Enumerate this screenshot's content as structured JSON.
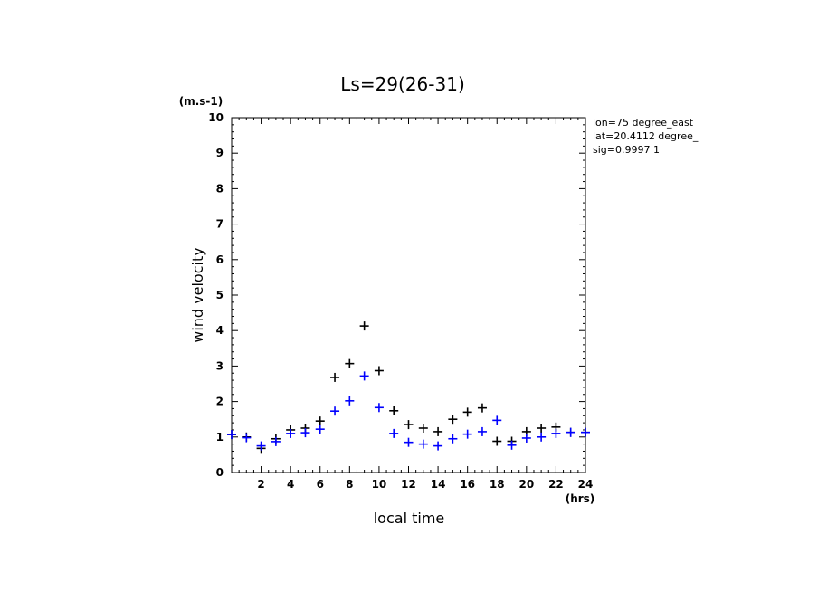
{
  "chart_data": {
    "type": "scatter",
    "title": "Ls=29(26-31)",
    "xlabel": "local time",
    "ylabel": "wind velocity",
    "x_unit": "(hrs)",
    "y_unit": "(m.s-1)",
    "xlim": [
      0,
      24
    ],
    "ylim": [
      0,
      10
    ],
    "x_ticks": [
      "2",
      "4",
      "6",
      "8",
      "10",
      "12",
      "14",
      "16",
      "18",
      "20",
      "22",
      "24"
    ],
    "y_ticks": [
      "0",
      "1",
      "2",
      "3",
      "4",
      "5",
      "6",
      "7",
      "8",
      "9",
      "10"
    ],
    "grid": false,
    "annotations": [
      "lon=75 degree_east",
      "lat=20.4112 degree_",
      "sig=0.9997 1"
    ],
    "series": [
      {
        "color": "#000000",
        "x": [
          0,
          1,
          2,
          3,
          4,
          5,
          6,
          7,
          8,
          9,
          10,
          11,
          12,
          13,
          14,
          15,
          16,
          17,
          18,
          19,
          20,
          21,
          22,
          23,
          24
        ],
        "y": [
          1.07,
          1.0,
          0.68,
          0.95,
          1.2,
          1.25,
          1.45,
          2.68,
          3.07,
          4.13,
          2.87,
          1.74,
          1.35,
          1.25,
          1.15,
          1.5,
          1.7,
          1.82,
          0.88,
          0.88,
          1.15,
          1.25,
          1.28,
          1.13,
          1.13
        ]
      },
      {
        "color": "#0000ff",
        "x": [
          0,
          1,
          2,
          3,
          4,
          5,
          6,
          7,
          8,
          9,
          10,
          11,
          12,
          13,
          14,
          15,
          16,
          17,
          18,
          19,
          20,
          21,
          22,
          23,
          24
        ],
        "y": [
          1.07,
          0.98,
          0.75,
          0.87,
          1.1,
          1.12,
          1.22,
          1.73,
          2.02,
          2.72,
          1.83,
          1.1,
          0.85,
          0.8,
          0.75,
          0.95,
          1.08,
          1.15,
          1.47,
          0.77,
          0.97,
          1.0,
          1.1,
          1.13,
          1.13
        ]
      }
    ]
  }
}
